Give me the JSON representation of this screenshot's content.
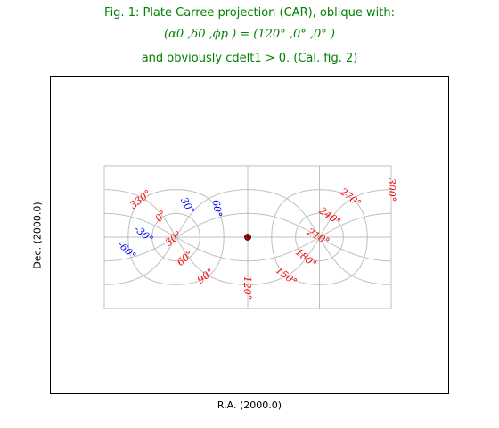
{
  "figure": {
    "title_line1": "Fig. 1: Plate Carree projection (CAR), oblique with:",
    "title_line2": "(α0 ,δ0 ,ϕp ) = (120° ,0° ,0° )",
    "title_line3": "and obviously cdelt1 > 0. (Cal. fig. 2)",
    "title_color": "#008000"
  },
  "chart_data": {
    "type": "graticule",
    "projection": "CAR (Plate Carree), oblique",
    "xlabel": "R.A. (2000.0)",
    "ylabel": "Dec. (2000.0)",
    "pole": {
      "alpha0": 120,
      "delta0": 0,
      "phi_p": 0
    },
    "native_lon_range": [
      -180,
      180
    ],
    "native_lat_range": [
      -90,
      90
    ],
    "ra_meridians": [
      0,
      30,
      60,
      90,
      120,
      150,
      180,
      210,
      240,
      270,
      300,
      330
    ],
    "dec_parallels": [
      -60,
      -30,
      0,
      30,
      60
    ],
    "ra_labels": [
      "330°",
      "0°",
      "30°",
      "60°",
      "90°",
      "120°",
      "150°",
      "180°",
      "210°",
      "240°",
      "270°",
      "300°"
    ],
    "dec_labels": [
      "30°",
      "60°",
      "-30°",
      "-60°"
    ],
    "ra_label_color": "#ff0000",
    "dec_label_color": "#0000ff",
    "grid_color": "#bfbfbf",
    "marker": {
      "ra": 120,
      "dec": 0,
      "color": "#ff0000"
    }
  }
}
